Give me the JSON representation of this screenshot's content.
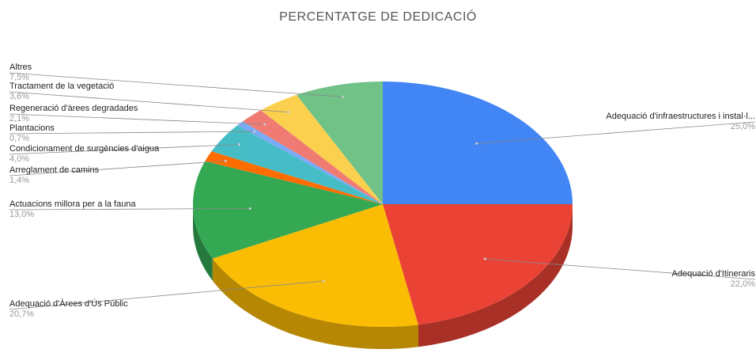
{
  "chart_data": {
    "type": "pie3d",
    "title": "PERCENTATGE DE DEDICACIÓ",
    "categories": [
      "Adequació d'infraestructures i instal·l...",
      "Adequació d'Itineraris",
      "Adequació d'Àrees d'Ús Públic",
      "Actuacions millora per a la fauna",
      "Arreglament de camins",
      "Condicionament de surgències d'aigua",
      "Plantacions",
      "Regeneració d'àrees degradades",
      "Tractament de la vegetació",
      "Altres"
    ],
    "values": [
      25.0,
      22.0,
      20.7,
      13.0,
      1.4,
      4.0,
      0.7,
      2.1,
      3.6,
      7.5
    ],
    "value_labels": [
      "25,0%",
      "22,0%",
      "20,7%",
      "13,0%",
      "1,4%",
      "4,0%",
      "0,7%",
      "2,1%",
      "3,6%",
      "7,5%"
    ],
    "colors": [
      "#4285f4",
      "#ea4335",
      "#fbbc04",
      "#34a853",
      "#ff6d01",
      "#46bdc6",
      "#7baaf7",
      "#f07b72",
      "#fcd04f",
      "#71c287"
    ]
  }
}
